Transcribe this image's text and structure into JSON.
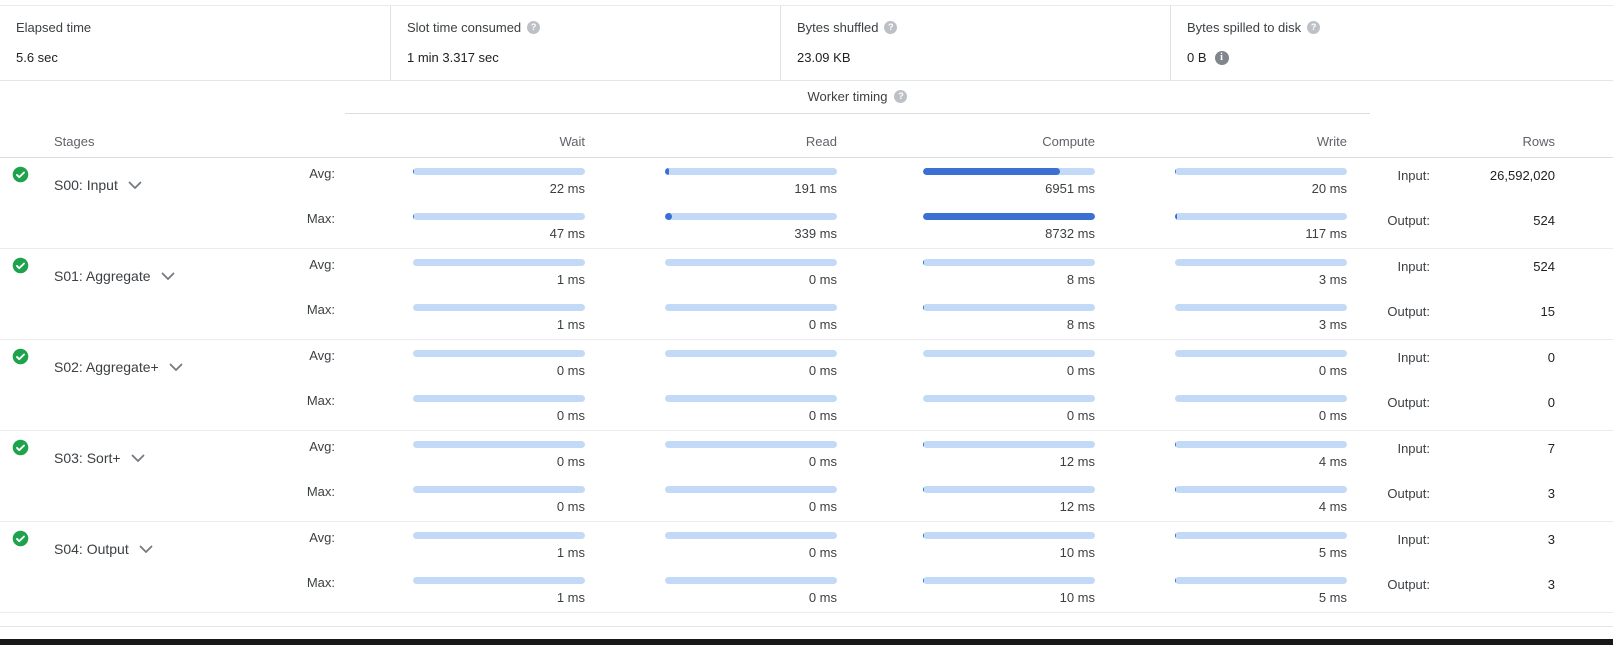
{
  "summary": {
    "items": [
      {
        "label": "Elapsed time",
        "value": "5.6 sec",
        "help": false,
        "info": false
      },
      {
        "label": "Slot time consumed",
        "value": "1 min 3.317 sec",
        "help": true,
        "info": false
      },
      {
        "label": "Bytes shuffled",
        "value": "23.09 KB",
        "help": true,
        "info": false
      },
      {
        "label": "Bytes spilled to disk",
        "value": "0 B",
        "help": true,
        "info": true
      }
    ]
  },
  "worker_timing": {
    "label": "Worker timing"
  },
  "table": {
    "stages_header": "Stages",
    "columns": {
      "wait": "Wait",
      "read": "Read",
      "compute": "Compute",
      "write": "Write",
      "rows": "Rows"
    },
    "avg_label": "Avg:",
    "max_label": "Max:",
    "input_label": "Input:",
    "output_label": "Output:",
    "unit": "ms",
    "max_ms": 8732,
    "stages": [
      {
        "name": "S00: Input",
        "status": "completed",
        "wait": {
          "avg": 22,
          "max": 47
        },
        "read": {
          "avg": 191,
          "max": 339
        },
        "compute": {
          "avg": 6951,
          "max": 8732
        },
        "write": {
          "avg": 20,
          "max": 117
        },
        "input_rows": "26,592,020",
        "output_rows": "524"
      },
      {
        "name": "S01: Aggregate",
        "status": "completed",
        "wait": {
          "avg": 1,
          "max": 1
        },
        "read": {
          "avg": 0,
          "max": 0
        },
        "compute": {
          "avg": 8,
          "max": 8
        },
        "write": {
          "avg": 3,
          "max": 3
        },
        "input_rows": "524",
        "output_rows": "15"
      },
      {
        "name": "S02: Aggregate+",
        "status": "completed",
        "wait": {
          "avg": 0,
          "max": 0
        },
        "read": {
          "avg": 0,
          "max": 0
        },
        "compute": {
          "avg": 0,
          "max": 0
        },
        "write": {
          "avg": 0,
          "max": 0
        },
        "input_rows": "0",
        "output_rows": "0"
      },
      {
        "name": "S03: Sort+",
        "status": "completed",
        "wait": {
          "avg": 0,
          "max": 0
        },
        "read": {
          "avg": 0,
          "max": 0
        },
        "compute": {
          "avg": 12,
          "max": 12
        },
        "write": {
          "avg": 4,
          "max": 4
        },
        "input_rows": "7",
        "output_rows": "3"
      },
      {
        "name": "S04: Output",
        "status": "completed",
        "wait": {
          "avg": 1,
          "max": 1
        },
        "read": {
          "avg": 0,
          "max": 0
        },
        "compute": {
          "avg": 10,
          "max": 10
        },
        "write": {
          "avg": 5,
          "max": 5
        },
        "input_rows": "3",
        "output_rows": "3"
      }
    ]
  },
  "colors": {
    "bar_track": "#c3daf7",
    "bar_fill": "#3b6fd4",
    "success_green": "#1ea34c"
  }
}
